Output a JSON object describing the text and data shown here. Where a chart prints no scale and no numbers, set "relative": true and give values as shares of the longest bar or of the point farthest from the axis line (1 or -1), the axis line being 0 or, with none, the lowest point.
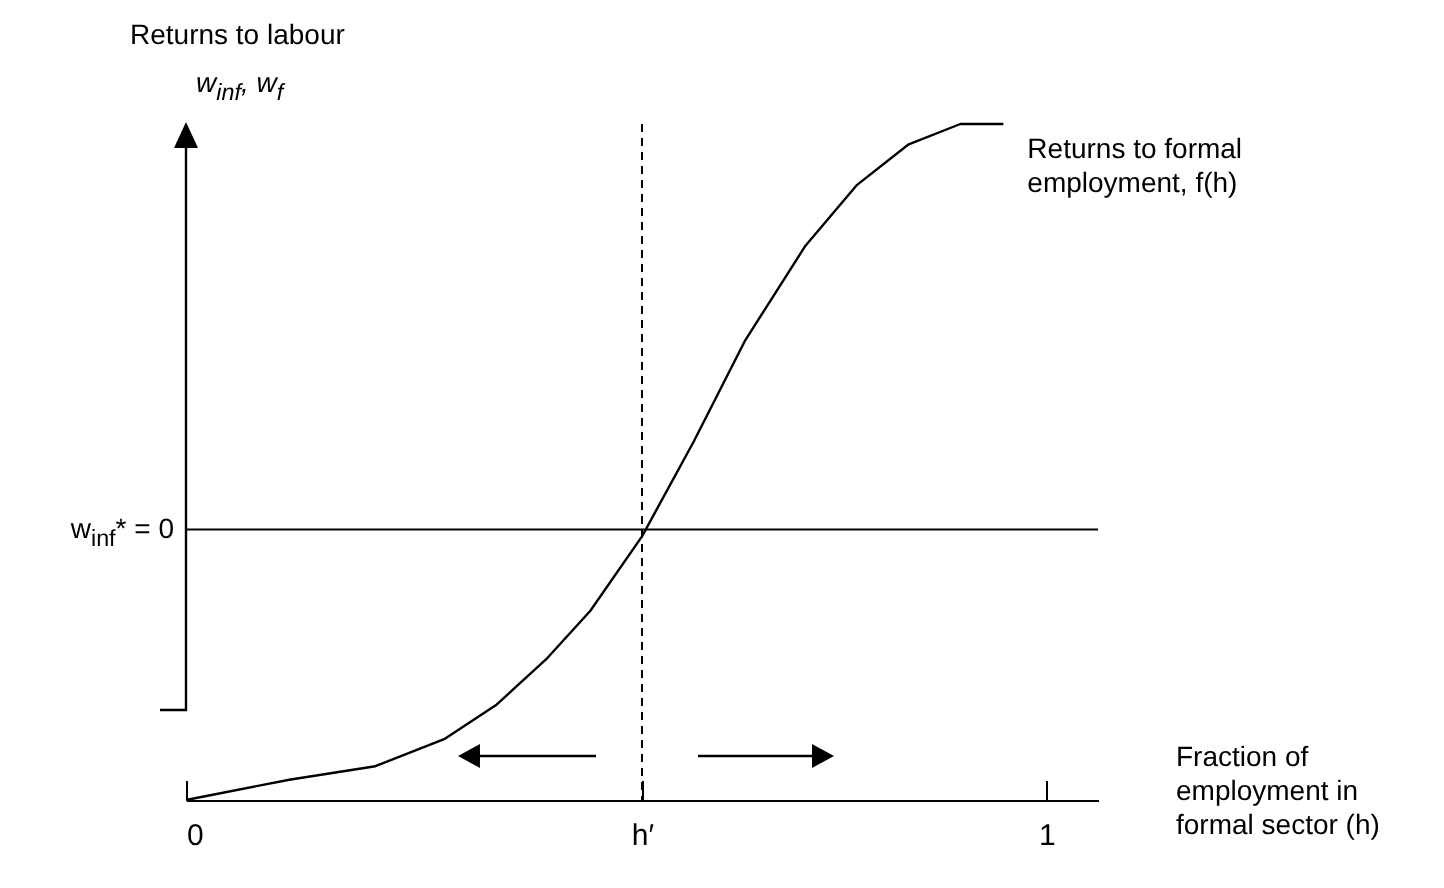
{
  "chart_data": {
    "type": "line",
    "title": "Returns to labour",
    "ylabel": "w$_{inf}$, w$_{f}$",
    "xlabel": "Fraction of employment in formal sector (h)",
    "relative": true,
    "x": [
      0,
      0.12,
      0.22,
      0.3,
      0.36,
      0.42,
      0.47,
      0.53,
      0.59,
      0.65,
      0.72,
      0.78,
      0.84,
      0.9,
      0.95
    ],
    "series": [
      {
        "color": "#000000",
        "values": [
          0,
          0.03,
          0.05,
          0.09,
          0.14,
          0.21,
          0.28,
          0.39,
          0.53,
          0.68,
          0.82,
          0.91,
          0.97,
          1.0,
          1.0
        ]
      }
    ],
    "xlim": [
      0,
      1.06
    ],
    "xticks": [
      0,
      {
        "value": 0.53,
        "label": "h′"
      },
      1
    ],
    "ref_lines": [
      {
        "axis": "x",
        "value": 0.53,
        "line_style": "dashed"
      },
      {
        "axis": "y",
        "value": 0.4,
        "label": "w$_{inf}$* = 0"
      }
    ],
    "annotations": [
      {
        "text": "Returns to formal employment, f(h)",
        "x": 0.95,
        "y": 1.0
      }
    ],
    "grid": false,
    "legend": false,
    "marker": "none",
    "line_style": "solid"
  }
}
